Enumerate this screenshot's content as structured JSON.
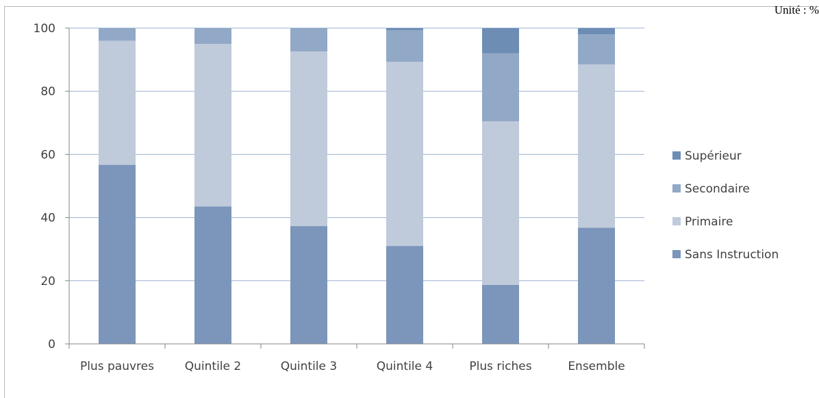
{
  "unit_label": "Unité : %",
  "chart_data": {
    "type": "bar",
    "stacked": true,
    "categories": [
      "Plus pauvres",
      "Quintile 2",
      "Quintile 3",
      "Quintile 4",
      "Plus riches",
      "Ensemble"
    ],
    "series": [
      {
        "name": "Sans Instruction",
        "values": [
          56.7,
          43.5,
          37.3,
          31.0,
          18.7,
          36.8
        ],
        "color": "#7b95bb"
      },
      {
        "name": "Primaire",
        "values": [
          39.3,
          51.5,
          55.3,
          58.3,
          51.8,
          51.7
        ],
        "color": "#bfcadb"
      },
      {
        "name": "Secondaire",
        "values": [
          4.0,
          5.0,
          7.4,
          10.0,
          21.5,
          9.5
        ],
        "color": "#91a8c6"
      },
      {
        "name": "Supérieur",
        "values": [
          0.0,
          0.0,
          0.0,
          0.7,
          8.0,
          2.0
        ],
        "color": "#6e8db5"
      }
    ],
    "ylim": [
      0,
      100
    ],
    "yticks": [
      0,
      20,
      40,
      60,
      80,
      100
    ],
    "legend_position": "right",
    "grid": true,
    "gridline_color": "#9ab0d0"
  }
}
